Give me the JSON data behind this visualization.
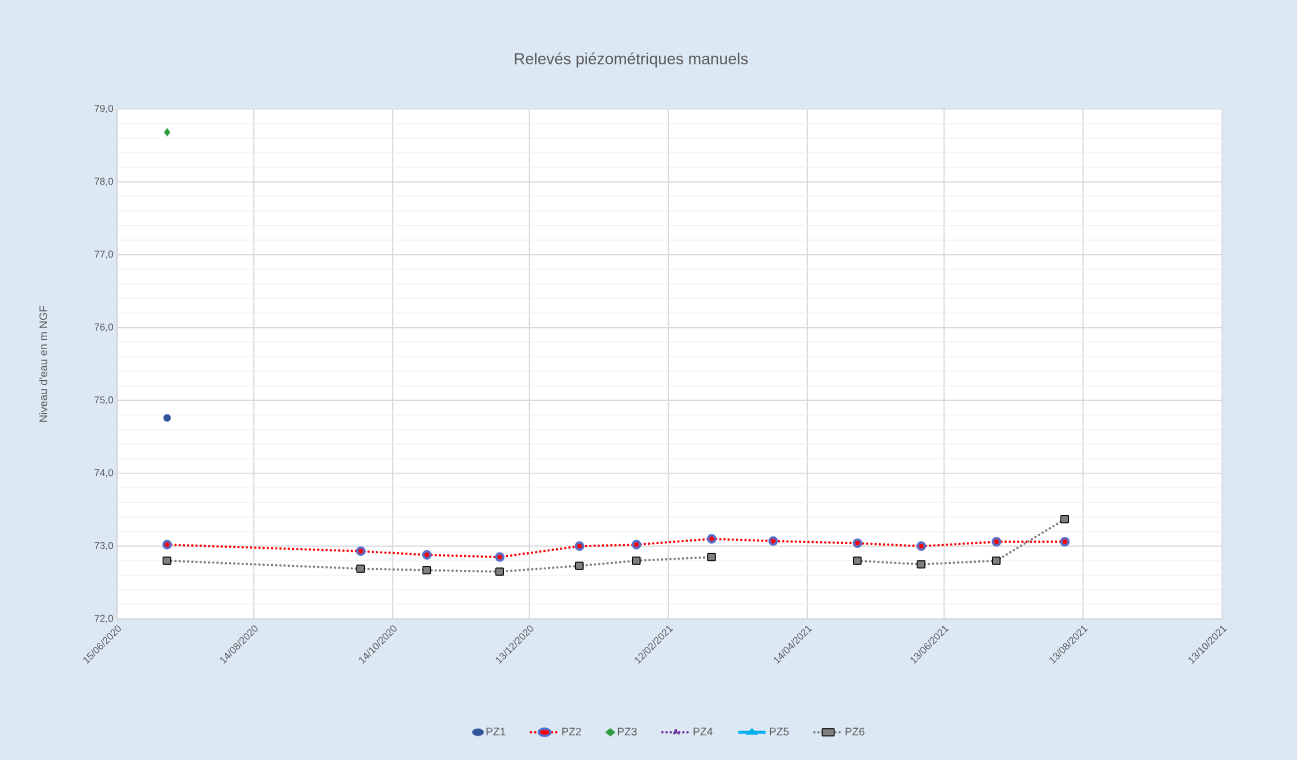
{
  "chart_data": {
    "type": "line",
    "title": "Relevés piézométriques manuels",
    "ylabel": "Niveau d'eau en m NGF",
    "x": [
      "2020-07-07",
      "2020-09-30",
      "2020-10-29",
      "2020-11-30",
      "2021-01-04",
      "2021-01-29",
      "2021-03-03",
      "2021-03-30",
      "2021-05-06",
      "2021-06-03",
      "2021-07-06",
      "2021-08-05"
    ],
    "series": [
      {
        "name": "PZ1",
        "type": "scatter",
        "color": "#2f5597",
        "marker": "circle",
        "x": [
          "2020-07-07"
        ],
        "values": [
          74.76
        ]
      },
      {
        "name": "PZ2",
        "color": "#ff0000",
        "marker": "circle",
        "line_style": "dotted",
        "values": [
          73.02,
          72.93,
          72.88,
          72.85,
          73.0,
          73.02,
          73.1,
          73.07,
          73.04,
          73.0,
          73.06,
          73.06
        ]
      },
      {
        "name": "PZ3",
        "type": "scatter",
        "color": "#2e9b3f",
        "marker": "diamond",
        "x": [
          "2020-07-07"
        ],
        "values": [
          78.68
        ]
      },
      {
        "name": "PZ4",
        "color": "#7030a0",
        "marker": "triangle",
        "line_style": "dotted",
        "values": [
          null,
          null,
          null,
          null,
          null,
          null,
          null,
          null,
          null,
          null,
          null,
          null
        ]
      },
      {
        "name": "PZ5",
        "color": "#00b0f0",
        "marker": "triangle",
        "line_style": "solid",
        "values": [
          null,
          null,
          null,
          null,
          null,
          null,
          null,
          null,
          null,
          null,
          null,
          null
        ]
      },
      {
        "name": "PZ6",
        "color": "#808080",
        "marker": "square",
        "line_style": "dotted",
        "values": [
          72.8,
          72.69,
          72.67,
          72.65,
          72.73,
          72.8,
          72.85,
          null,
          72.8,
          72.75,
          72.8,
          73.37
        ]
      }
    ],
    "xlim": [
      "2020-06-15",
      "2021-10-13"
    ],
    "xticks": [
      {
        "value": "2020-06-15",
        "label": "15/06/2020"
      },
      {
        "value": "2020-08-14",
        "label": "14/08/2020"
      },
      {
        "value": "2020-10-14",
        "label": "14/10/2020"
      },
      {
        "value": "2020-12-13",
        "label": "13/12/2020"
      },
      {
        "value": "2021-02-12",
        "label": "12/02/2021"
      },
      {
        "value": "2021-04-14",
        "label": "14/04/2021"
      },
      {
        "value": "2021-06-13",
        "label": "13/06/2021"
      },
      {
        "value": "2021-08-13",
        "label": "13/08/2021"
      },
      {
        "value": "2021-10-13",
        "label": "13/10/2021"
      }
    ],
    "ylim": [
      72,
      79
    ],
    "yticks": [
      {
        "value": 72,
        "label": "72,0"
      },
      {
        "value": 73,
        "label": "73,0"
      },
      {
        "value": 74,
        "label": "74,0"
      },
      {
        "value": 75,
        "label": "75,0"
      },
      {
        "value": 76,
        "label": "76,0"
      },
      {
        "value": 77,
        "label": "77,0"
      },
      {
        "value": 78,
        "label": "78,0"
      },
      {
        "value": 79,
        "label": "79,0"
      }
    ],
    "grid": true,
    "legend": "bottom"
  }
}
